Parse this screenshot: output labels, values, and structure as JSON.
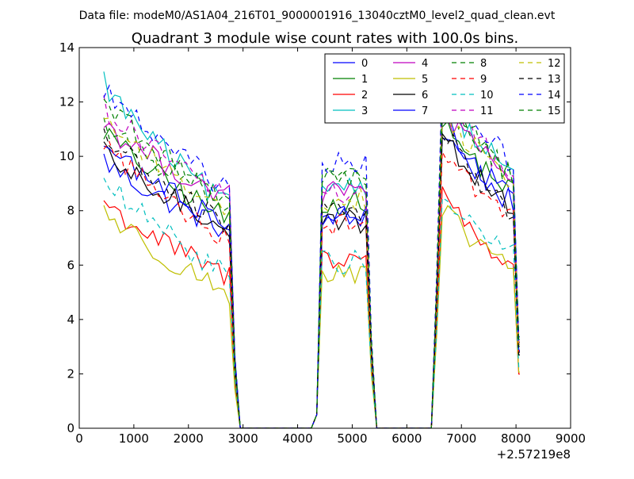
{
  "chart_data": {
    "type": "line",
    "suptitle": "Data file: modeM0/AS1A04_216T01_9000001916_13040cztM0_level2_quad_clean.evt",
    "title": "Quadrant 3 module wise count rates with 100.0s bins.",
    "xlabel": "",
    "ylabel": "",
    "x_offset_label": "+2.57219e8",
    "xlim": [
      0,
      9000
    ],
    "ylim": [
      0,
      14
    ],
    "x_ticks": [
      0,
      1000,
      2000,
      3000,
      4000,
      5000,
      6000,
      7000,
      8000,
      9000
    ],
    "y_ticks": [
      0,
      2,
      4,
      6,
      8,
      10,
      12,
      14
    ],
    "legend_position": "top-right",
    "grid": false,
    "series": [
      {
        "name": "0",
        "color": "#0000ff",
        "dashed": false,
        "pre_start": 9.9,
        "pre_end": 7.3,
        "mid_level": 7.8,
        "post_peak": 10.8,
        "post_end": 8.1
      },
      {
        "name": "1",
        "color": "#008000",
        "dashed": false,
        "pre_start": 11.0,
        "pre_end": 7.7,
        "mid_level": 8.3,
        "post_peak": 11.0,
        "post_end": 8.6
      },
      {
        "name": "2",
        "color": "#ff0000",
        "dashed": false,
        "pre_start": 8.4,
        "pre_end": 5.6,
        "mid_level": 6.3,
        "post_peak": 8.6,
        "post_end": 5.7
      },
      {
        "name": "3",
        "color": "#00bfbf",
        "dashed": false,
        "pre_start": 12.8,
        "pre_end": 8.2,
        "mid_level": 9.0,
        "post_peak": 12.0,
        "post_end": 9.3
      },
      {
        "name": "4",
        "color": "#bf00bf",
        "dashed": false,
        "pre_start": 11.3,
        "pre_end": 8.5,
        "mid_level": 8.7,
        "post_peak": 11.5,
        "post_end": 9.0
      },
      {
        "name": "5",
        "color": "#bfbf00",
        "dashed": false,
        "pre_start": 8.1,
        "pre_end": 5.0,
        "mid_level": 5.6,
        "post_peak": 7.8,
        "post_end": 5.9
      },
      {
        "name": "6",
        "color": "#000000",
        "dashed": false,
        "pre_start": 10.1,
        "pre_end": 7.4,
        "mid_level": 7.6,
        "post_peak": 10.6,
        "post_end": 8.0
      },
      {
        "name": "7",
        "color": "#0000ff",
        "dashed": false,
        "pre_start": 10.5,
        "pre_end": 7.6,
        "mid_level": 7.9,
        "post_peak": 11.2,
        "post_end": 8.2
      },
      {
        "name": "8",
        "color": "#008000",
        "dashed": true,
        "pre_start": 11.2,
        "pre_end": 8.4,
        "mid_level": 9.2,
        "post_peak": 11.8,
        "post_end": 9.2
      },
      {
        "name": "9",
        "color": "#ff0000",
        "dashed": true,
        "pre_start": 10.6,
        "pre_end": 7.0,
        "mid_level": 7.5,
        "post_peak": 10.2,
        "post_end": 7.6
      },
      {
        "name": "10",
        "color": "#00bfbf",
        "dashed": true,
        "pre_start": 9.2,
        "pre_end": 5.7,
        "mid_level": 6.1,
        "post_peak": 8.3,
        "post_end": 6.4
      },
      {
        "name": "11",
        "color": "#bf00bf",
        "dashed": true,
        "pre_start": 11.9,
        "pre_end": 8.6,
        "mid_level": 8.6,
        "post_peak": 12.4,
        "post_end": 9.0
      },
      {
        "name": "12",
        "color": "#bfbf00",
        "dashed": true,
        "pre_start": 11.6,
        "pre_end": 8.0,
        "mid_level": 8.4,
        "post_peak": 11.6,
        "post_end": 8.8
      },
      {
        "name": "13",
        "color": "#000000",
        "dashed": true,
        "pre_start": 10.9,
        "pre_end": 7.5,
        "mid_level": 8.0,
        "post_peak": 10.8,
        "post_end": 7.7
      },
      {
        "name": "14",
        "color": "#0000ff",
        "dashed": true,
        "pre_start": 12.6,
        "pre_end": 8.8,
        "mid_level": 9.7,
        "post_peak": 13.0,
        "post_end": 9.6
      },
      {
        "name": "15",
        "color": "#008000",
        "dashed": true,
        "pre_start": 12.2,
        "pre_end": 8.3,
        "mid_level": 9.3,
        "post_peak": 12.2,
        "post_end": 9.1
      }
    ]
  }
}
